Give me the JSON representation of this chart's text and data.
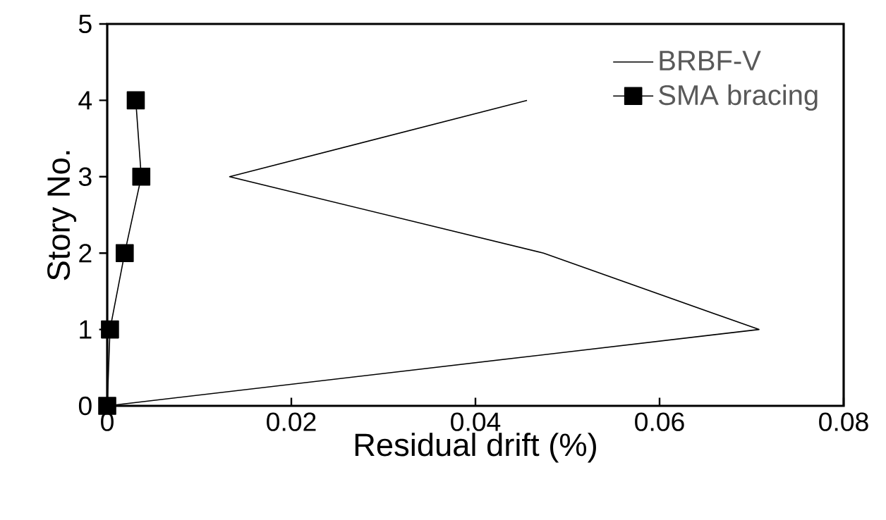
{
  "chart_data": {
    "type": "line",
    "xlabel": "Residual drift (%)",
    "ylabel": "Story No.",
    "xlim": [
      0,
      0.08
    ],
    "xticks": [
      0,
      0.02,
      0.04,
      0.06,
      0.08
    ],
    "ylim": [
      0,
      5
    ],
    "yticks": [
      0,
      1,
      2,
      3,
      4,
      5
    ],
    "grid": false,
    "legend": "top right",
    "series": [
      {
        "name": "BRBF-V",
        "color": "#000000",
        "marker": "none",
        "x": [
          0,
          0.0708,
          0.0474,
          0.0133,
          0.0456
        ],
        "values": [
          0,
          1,
          2,
          3,
          4
        ]
      },
      {
        "name": "SMA bracing",
        "color": "#000000",
        "marker": "square",
        "x": [
          0,
          0.0003,
          0.0019,
          0.0037,
          0.0031
        ],
        "values": [
          0,
          1,
          2,
          3,
          4
        ]
      }
    ]
  }
}
